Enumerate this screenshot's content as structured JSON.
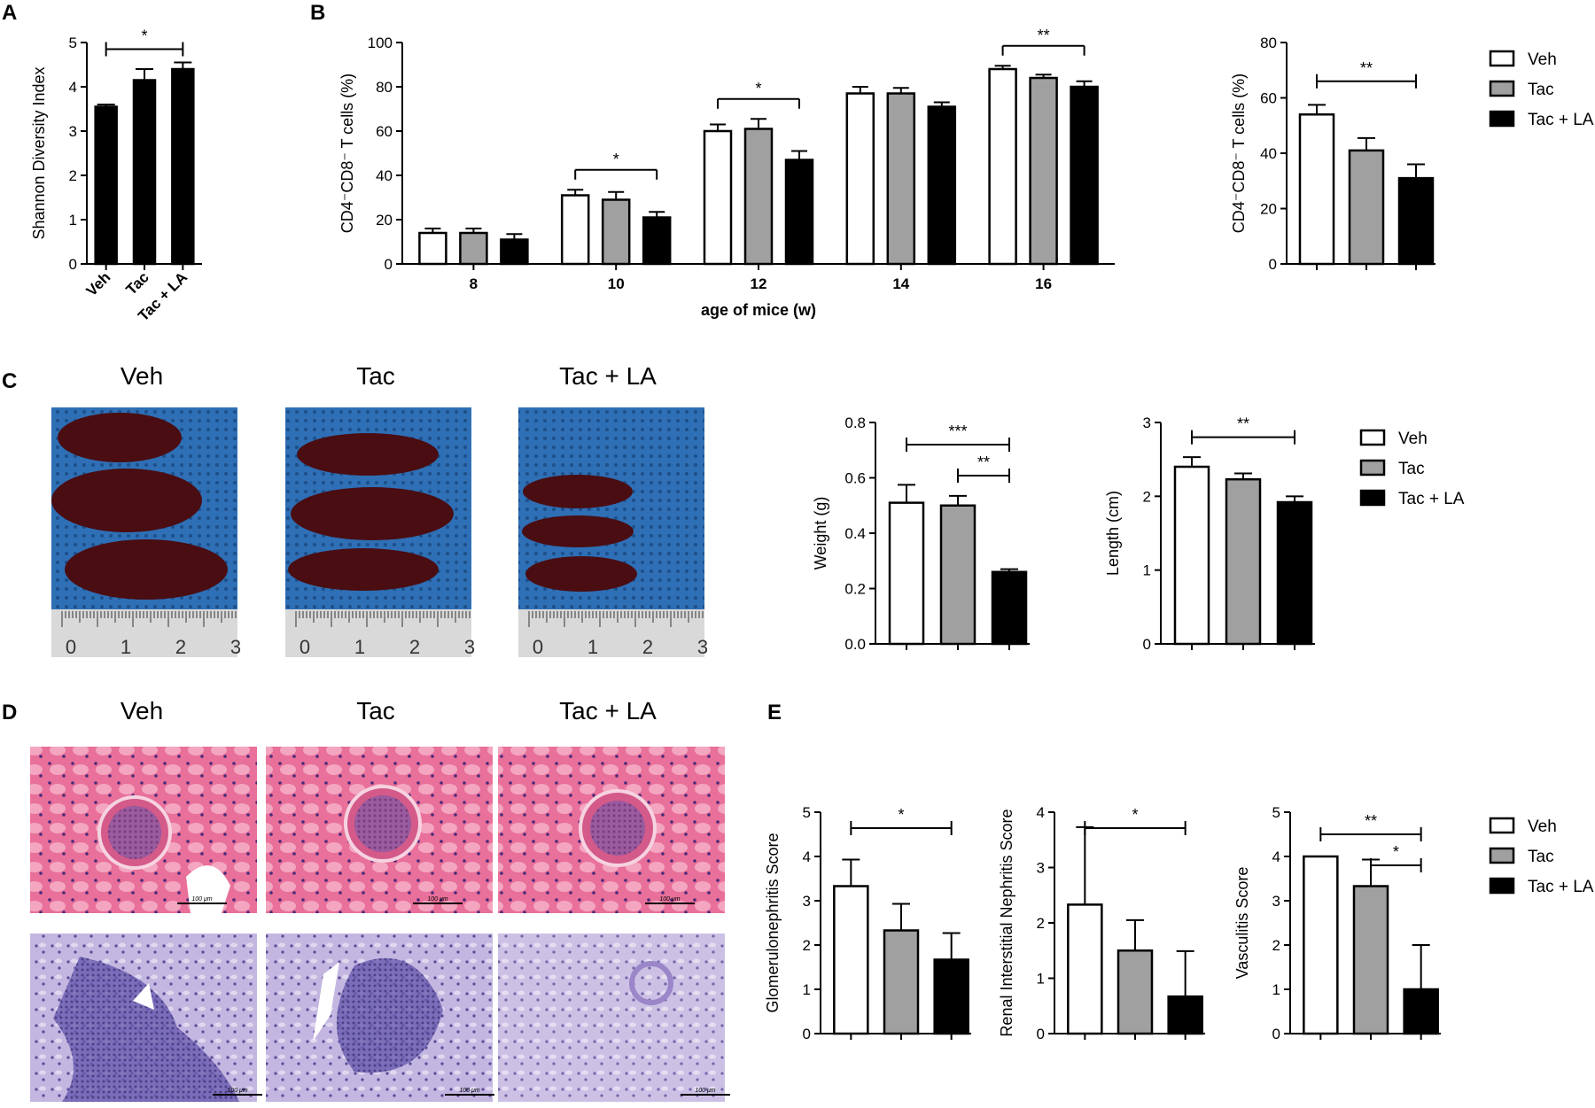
{
  "panel_labels": {
    "A": "A",
    "B": "B",
    "C": "C",
    "D": "D",
    "E": "E"
  },
  "legend": [
    {
      "label": "Veh",
      "fill": "#ffffff"
    },
    {
      "label": "Tac",
      "fill": "#a0a0a0"
    },
    {
      "label": "Tac + LA",
      "fill": "#000000"
    }
  ],
  "photo_titles": {
    "c": [
      "Veh",
      "Tac",
      "Tac + LA"
    ],
    "d": [
      "Veh",
      "Tac",
      "Tac + LA"
    ]
  },
  "ruler_labels": [
    "0",
    "1",
    "2",
    "3"
  ],
  "scale_bar_label": "100 μm",
  "colors": {
    "veh": "#ffffff",
    "tac": "#a0a0a0",
    "tacla": "#000000",
    "he": "#e8709a",
    "pas": "#b7a8d8",
    "drape": "#2e6fb5",
    "kidney": "#4a0d12"
  },
  "chart_data": [
    {
      "id": "A",
      "type": "bar",
      "categories": [
        "Veh",
        "Tac",
        "Tac + LA"
      ],
      "values": [
        3.55,
        4.15,
        4.4
      ],
      "errors": [
        0.05,
        0.25,
        0.15
      ],
      "colors": [
        "#000000",
        "#000000",
        "#000000"
      ],
      "ylabel": "Shannon Diversity Index",
      "ylim": [
        0,
        5
      ],
      "yticks": [
        "0",
        "1",
        "2",
        "3",
        "4",
        "5"
      ],
      "significance": [
        {
          "from": 0,
          "to": 2,
          "label": "*"
        }
      ]
    },
    {
      "id": "B1",
      "type": "bar",
      "categories": [
        "8",
        "10",
        "12",
        "14",
        "16"
      ],
      "series": [
        {
          "name": "Veh",
          "values": [
            14,
            31,
            60,
            77,
            88
          ],
          "errors": [
            2,
            2.5,
            3,
            3,
            1.5
          ]
        },
        {
          "name": "Tac",
          "values": [
            14,
            29,
            61,
            77,
            84
          ],
          "errors": [
            2,
            3.5,
            4.5,
            2.5,
            1.5
          ]
        },
        {
          "name": "Tac + LA",
          "values": [
            11,
            21,
            47,
            71,
            80
          ],
          "errors": [
            2.5,
            2.5,
            4,
            2,
            2.5
          ]
        }
      ],
      "ylabel": "CD4⁻CD8⁻ T cells (%)",
      "xlabel": "age of mice (w)",
      "ylim": [
        0,
        100
      ],
      "yticks": [
        "0",
        "20",
        "40",
        "60",
        "80",
        "100"
      ],
      "significance": [
        {
          "group": 1,
          "from": 0,
          "to": 2,
          "label": "*"
        },
        {
          "group": 2,
          "from": 0,
          "to": 2,
          "label": "*"
        },
        {
          "group": 4,
          "from": 0,
          "to": 2,
          "label": "**"
        }
      ]
    },
    {
      "id": "B2",
      "type": "bar",
      "categories": [
        "Veh",
        "Tac",
        "Tac + LA"
      ],
      "values": [
        54,
        41,
        31
      ],
      "errors": [
        3.5,
        4.5,
        5
      ],
      "colors": [
        "#ffffff",
        "#a0a0a0",
        "#000000"
      ],
      "ylabel": "CD4⁻CD8⁻ T cells (%)",
      "ylim": [
        0,
        80
      ],
      "yticks": [
        "0",
        "20",
        "40",
        "60",
        "80"
      ],
      "significance": [
        {
          "from": 0,
          "to": 2,
          "label": "**"
        }
      ]
    },
    {
      "id": "C1",
      "type": "bar",
      "categories": [
        "Veh",
        "Tac",
        "Tac + LA"
      ],
      "values": [
        0.51,
        0.5,
        0.26
      ],
      "errors": [
        0.065,
        0.035,
        0.01
      ],
      "colors": [
        "#ffffff",
        "#a0a0a0",
        "#000000"
      ],
      "ylabel": "Weight (g)",
      "ylim": [
        0,
        0.8
      ],
      "yticks": [
        "0.0",
        "0.2",
        "0.4",
        "0.6",
        "0.8"
      ],
      "significance": [
        {
          "from": 0,
          "to": 2,
          "label": "***"
        },
        {
          "from": 1,
          "to": 2,
          "label": "**"
        }
      ]
    },
    {
      "id": "C2",
      "type": "bar",
      "categories": [
        "Veh",
        "Tac",
        "Tac + LA"
      ],
      "values": [
        2.4,
        2.23,
        1.92
      ],
      "errors": [
        0.13,
        0.08,
        0.08
      ],
      "colors": [
        "#ffffff",
        "#a0a0a0",
        "#000000"
      ],
      "ylabel": "Length (cm)",
      "ylim": [
        0,
        3
      ],
      "yticks": [
        "0",
        "1",
        "2",
        "3"
      ],
      "significance": [
        {
          "from": 0,
          "to": 2,
          "label": "**"
        }
      ]
    },
    {
      "id": "E1",
      "type": "bar",
      "categories": [
        "Veh",
        "Tac",
        "Tac + LA"
      ],
      "values": [
        3.33,
        2.33,
        1.67
      ],
      "errors": [
        0.6,
        0.6,
        0.6
      ],
      "colors": [
        "#ffffff",
        "#a0a0a0",
        "#000000"
      ],
      "ylabel": "Glomerulonephritis Score",
      "ylim": [
        0,
        5
      ],
      "yticks": [
        "0",
        "1",
        "2",
        "3",
        "4",
        "5"
      ],
      "significance": [
        {
          "from": 0,
          "to": 2,
          "label": "*"
        }
      ]
    },
    {
      "id": "E2",
      "type": "bar",
      "categories": [
        "Veh",
        "Tac",
        "Tac + LA"
      ],
      "values": [
        2.33,
        1.5,
        0.67
      ],
      "errors": [
        1.4,
        0.55,
        0.82
      ],
      "colors": [
        "#ffffff",
        "#a0a0a0",
        "#000000"
      ],
      "ylabel": "Renal Interstitial Nephritis Score",
      "ylim": [
        0,
        4
      ],
      "yticks": [
        "0",
        "1",
        "2",
        "3",
        "4"
      ],
      "significance": [
        {
          "from": 0,
          "to": 2,
          "label": "*"
        }
      ]
    },
    {
      "id": "E3",
      "type": "bar",
      "categories": [
        "Veh",
        "Tac",
        "Tac + LA"
      ],
      "values": [
        4,
        3.33,
        1
      ],
      "errors": [
        0,
        0.6,
        1
      ],
      "colors": [
        "#ffffff",
        "#a0a0a0",
        "#000000"
      ],
      "ylabel": "Vasculitis Score",
      "ylim": [
        0,
        5
      ],
      "yticks": [
        "0",
        "1",
        "2",
        "3",
        "4",
        "5"
      ],
      "significance": [
        {
          "from": 0,
          "to": 2,
          "label": "**"
        },
        {
          "from": 1,
          "to": 2,
          "label": "*"
        }
      ]
    }
  ]
}
